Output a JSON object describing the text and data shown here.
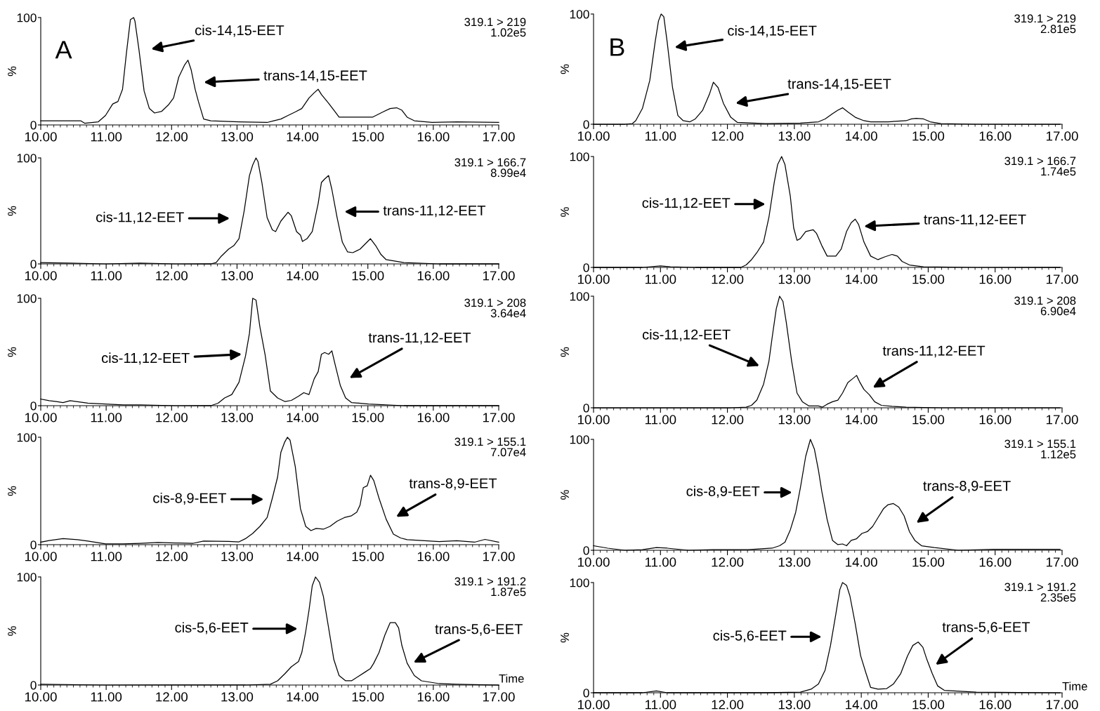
{
  "chart_data": [
    {
      "type": "line",
      "color": "#000000",
      "xlim": [
        10,
        17
      ],
      "xticks": [
        {
          "value": 10,
          "label": "10.00"
        },
        {
          "value": 11,
          "label": "11.00"
        },
        {
          "value": 12,
          "label": "12.00"
        },
        {
          "value": 13,
          "label": "13.00"
        },
        {
          "value": 14,
          "label": "14.00"
        },
        {
          "value": 15,
          "label": "15.00"
        },
        {
          "value": 16,
          "label": "16.00"
        },
        {
          "value": 17,
          "label": "17.00"
        }
      ],
      "ylim": [
        0,
        100
      ],
      "yticks": [
        0,
        100
      ],
      "ylabel": "%",
      "x": [
        10.0,
        10.61,
        10.67,
        10.88,
        10.99,
        11.1,
        11.18,
        11.25,
        11.31,
        11.37,
        11.42,
        11.44,
        11.5,
        11.58,
        11.66,
        11.74,
        11.85,
        11.95,
        12.03,
        12.11,
        12.2,
        12.25,
        12.3,
        12.36,
        12.41,
        12.49,
        12.6,
        13.03,
        13.46,
        13.56,
        13.67,
        13.78,
        13.89,
        13.99,
        14.1,
        14.18,
        14.24,
        14.29,
        14.4,
        14.5,
        14.56,
        14.75,
        15.07,
        15.23,
        15.34,
        15.44,
        15.52,
        15.6,
        15.71,
        15.98,
        16.36,
        17.0
      ],
      "values": [
        3.9,
        3.9,
        1.6,
        2.9,
        8.8,
        19.5,
        21.8,
        33.2,
        67.1,
        98.0,
        100,
        96.7,
        70.7,
        31.6,
        15.3,
        11.1,
        12.7,
        18.6,
        25.1,
        44.6,
        56.0,
        60.3,
        51.1,
        33.2,
        21.8,
        5.5,
        3.9,
        2.9,
        2.3,
        3.9,
        5.5,
        8.8,
        12.1,
        15.3,
        25.1,
        30.0,
        33.2,
        28.3,
        20.2,
        12.1,
        7.2,
        7.2,
        7.2,
        12.1,
        15.3,
        16.0,
        13.7,
        7.2,
        3.9,
        2.3,
        2.9,
        2.3
      ],
      "annotations": [
        "319.1 > 219\n1.02e5",
        "A",
        "cis-14,15-EET",
        "trans-14,15-EET"
      ]
    },
    {
      "type": "line",
      "color": "#000000",
      "xlim": [
        10,
        17
      ],
      "xticks": [
        {
          "value": 10,
          "label": "10.00"
        },
        {
          "value": 11,
          "label": "11.00"
        },
        {
          "value": 12,
          "label": "12.00"
        },
        {
          "value": 13,
          "label": "13.00"
        },
        {
          "value": 14,
          "label": "14.00"
        },
        {
          "value": 15,
          "label": "15.00"
        },
        {
          "value": 16,
          "label": "16.00"
        },
        {
          "value": 17,
          "label": "17.00"
        }
      ],
      "ylim": [
        0,
        100
      ],
      "yticks": [
        0,
        100
      ],
      "ylabel": "%",
      "x": [
        10.0,
        10.47,
        10.58,
        10.63,
        10.73,
        10.84,
        10.92,
        10.97,
        11.01,
        11.05,
        11.1,
        11.18,
        11.26,
        11.34,
        11.44,
        11.52,
        11.63,
        11.73,
        11.79,
        11.86,
        11.94,
        12.05,
        12.15,
        12.57,
        13.09,
        13.36,
        13.46,
        13.57,
        13.65,
        13.72,
        13.8,
        13.91,
        14.04,
        14.14,
        14.4,
        14.67,
        14.75,
        14.82,
        14.93,
        15.03,
        15.19,
        15.72,
        16.97
      ],
      "values": [
        0,
        0,
        0.6,
        3.2,
        14.3,
        39.7,
        74.6,
        93.7,
        100,
        97.5,
        74.6,
        33.3,
        7.9,
        3.2,
        2.2,
        4.8,
        12.7,
        27.0,
        38.1,
        33.3,
        19.0,
        6.3,
        1.6,
        0.6,
        1.0,
        2.2,
        4.8,
        9.5,
        12.7,
        14.9,
        11.1,
        6.3,
        3.2,
        2.2,
        2.2,
        3.2,
        4.8,
        5.4,
        4.8,
        2.2,
        0.6,
        0,
        0
      ],
      "annotations": [
        "319.1 > 219\n2.81e5",
        "B",
        "cis-14,15-EET",
        "trans-14,15-EET"
      ]
    },
    {
      "type": "line",
      "color": "#000000",
      "xlim": [
        10,
        17
      ],
      "xticks": [
        {
          "value": 10,
          "label": "10.00"
        },
        {
          "value": 11,
          "label": "11.00"
        },
        {
          "value": 12,
          "label": "12.00"
        },
        {
          "value": 13,
          "label": "13.00"
        },
        {
          "value": 14,
          "label": "14.00"
        },
        {
          "value": 15,
          "label": "15.00"
        },
        {
          "value": 16,
          "label": "16.00"
        },
        {
          "value": 17,
          "label": "17.00"
        }
      ],
      "ylim": [
        0,
        100
      ],
      "yticks": [
        0,
        100
      ],
      "ylabel": "%",
      "x": [
        10.0,
        10.45,
        10.99,
        11.52,
        12.06,
        12.6,
        12.68,
        12.76,
        12.87,
        12.95,
        13.03,
        13.11,
        13.19,
        13.24,
        13.29,
        13.32,
        13.38,
        13.46,
        13.54,
        13.59,
        13.67,
        13.78,
        13.83,
        13.91,
        13.97,
        14.0,
        14.07,
        14.15,
        14.24,
        14.29,
        14.34,
        14.4,
        14.45,
        14.53,
        14.61,
        14.69,
        14.77,
        14.88,
        14.96,
        15.04,
        15.12,
        15.2,
        15.28,
        15.55,
        16.09,
        17.0
      ],
      "values": [
        1.3,
        0.7,
        0,
        0.7,
        0,
        0,
        1.3,
        7.3,
        13.9,
        17.2,
        23.8,
        50.3,
        83.4,
        93.4,
        100,
        96.7,
        76.8,
        43.7,
        32.1,
        30.5,
        40.4,
        48.7,
        45.4,
        30.5,
        27.2,
        21.2,
        23.8,
        30.5,
        56.9,
        76.8,
        80.1,
        83.4,
        70.2,
        43.7,
        20.5,
        11.3,
        10.6,
        13.9,
        18.9,
        23.8,
        17.2,
        8.9,
        4.0,
        1.3,
        0,
        0
      ],
      "annotations": [
        "319.1 > 166.7\n8.99e4",
        "cis-11,12-EET",
        "trans-11,12-EET"
      ]
    },
    {
      "type": "line",
      "color": "#000000",
      "xlim": [
        10,
        17
      ],
      "xticks": [
        {
          "value": 10,
          "label": "10.00"
        },
        {
          "value": 11,
          "label": "11.00"
        },
        {
          "value": 12,
          "label": "12.00"
        },
        {
          "value": 13,
          "label": "13.00"
        },
        {
          "value": 14,
          "label": "14.00"
        },
        {
          "value": 15,
          "label": "15.00"
        },
        {
          "value": 16,
          "label": "16.00"
        },
        {
          "value": 17,
          "label": "17.00"
        }
      ],
      "ylim": [
        0,
        100
      ],
      "yticks": [
        0,
        100
      ],
      "ylabel": "%",
      "x": [
        10.0,
        10.73,
        11.0,
        11.15,
        11.52,
        12.2,
        12.28,
        12.36,
        12.44,
        12.54,
        12.62,
        12.7,
        12.75,
        12.81,
        12.86,
        12.94,
        12.99,
        13.04,
        13.09,
        13.17,
        13.28,
        13.33,
        13.41,
        13.49,
        13.62,
        13.7,
        13.78,
        13.85,
        13.91,
        13.96,
        14.04,
        14.14,
        14.25,
        14.35,
        14.46,
        14.54,
        14.61,
        14.72,
        14.93,
        15.72,
        16.97
      ],
      "values": [
        0,
        0,
        1.3,
        0.6,
        0,
        0,
        2.2,
        7.0,
        13.3,
        22.9,
        45.1,
        76.8,
        92.7,
        100,
        92.7,
        64.1,
        35.6,
        24.4,
        26.0,
        32.4,
        34.0,
        30.8,
        19.7,
        10.2,
        10.2,
        16.5,
        32.4,
        40.3,
        43.5,
        38.7,
        22.9,
        10.2,
        7.0,
        9.5,
        11.7,
        10.2,
        5.4,
        2.2,
        0.6,
        0,
        0
      ],
      "annotations": [
        "319.1 > 166.7\n1.74e5",
        "cis-11,12-EET",
        "trans-11,12-EET"
      ]
    },
    {
      "type": "line",
      "color": "#000000",
      "xlim": [
        10,
        17
      ],
      "xticks": [
        {
          "value": 10,
          "label": "10.00"
        },
        {
          "value": 11,
          "label": "11.00"
        },
        {
          "value": 12,
          "label": "12.00"
        },
        {
          "value": 13,
          "label": "13.00"
        },
        {
          "value": 14,
          "label": "14.00"
        },
        {
          "value": 15,
          "label": "15.00"
        },
        {
          "value": 16,
          "label": "16.00"
        },
        {
          "value": 17,
          "label": "17.00"
        }
      ],
      "ylim": [
        0,
        100
      ],
      "yticks": [
        0,
        100
      ],
      "ylabel": "%",
      "x": [
        10.0,
        10.13,
        10.24,
        10.34,
        10.45,
        10.72,
        10.99,
        11.26,
        11.52,
        12.06,
        12.6,
        12.71,
        12.81,
        12.92,
        13.03,
        13.13,
        13.19,
        13.24,
        13.29,
        13.35,
        13.43,
        13.51,
        13.62,
        13.73,
        13.83,
        13.94,
        14.02,
        14.1,
        14.18,
        14.24,
        14.29,
        14.34,
        14.4,
        14.45,
        14.5,
        14.58,
        14.66,
        14.75,
        15.01,
        15.55,
        17.0
      ],
      "values": [
        6.2,
        4.6,
        3.9,
        2.9,
        4.6,
        2.3,
        1.6,
        0.7,
        0.7,
        0,
        0,
        2.3,
        7.2,
        10.4,
        21.8,
        46.3,
        67.4,
        100,
        98.4,
        73.3,
        47.2,
        13.7,
        7.2,
        3.9,
        4.9,
        8.8,
        12.1,
        10.4,
        25.1,
        31.6,
        47.9,
        49.5,
        47.9,
        51.1,
        38.1,
        18.6,
        7.2,
        2.9,
        1.6,
        0,
        0
      ],
      "annotations": [
        "319.1 > 208\n3.64e4",
        "cis-11,12-EET",
        "trans-11,12-EET"
      ]
    },
    {
      "type": "line",
      "color": "#000000",
      "xlim": [
        10,
        17
      ],
      "xticks": [
        {
          "value": 10,
          "label": "10.00"
        },
        {
          "value": 11,
          "label": "11.00"
        },
        {
          "value": 12,
          "label": "12.00"
        },
        {
          "value": 13,
          "label": "13.00"
        },
        {
          "value": 14,
          "label": "14.00"
        },
        {
          "value": 15,
          "label": "15.00"
        },
        {
          "value": 16,
          "label": "16.00"
        },
        {
          "value": 17,
          "label": "17.00"
        }
      ],
      "ylim": [
        0,
        100
      ],
      "yticks": [
        0,
        100
      ],
      "ylabel": "%",
      "x": [
        10.0,
        11.0,
        12.05,
        12.28,
        12.36,
        12.44,
        12.54,
        12.62,
        12.67,
        12.73,
        12.78,
        12.83,
        12.88,
        12.96,
        13.04,
        13.12,
        13.22,
        13.36,
        13.42,
        13.49,
        13.57,
        13.65,
        13.72,
        13.8,
        13.88,
        13.93,
        13.98,
        14.04,
        14.12,
        14.2,
        14.3,
        14.46,
        14.67,
        15.19,
        16.97
      ],
      "values": [
        0,
        0,
        0,
        0.6,
        2.2,
        6.9,
        21.1,
        41.6,
        63.7,
        88.8,
        100,
        95.3,
        76.3,
        41.6,
        13.2,
        5.4,
        1.6,
        1.6,
        0.6,
        3.2,
        5.4,
        6.9,
        13.2,
        22.7,
        26.5,
        29.0,
        22.7,
        16.4,
        11.7,
        5.4,
        2.2,
        1.3,
        0.6,
        0,
        0
      ],
      "annotations": [
        "319.1 > 208\n6.90e4",
        "cis-11,12-EET",
        "trans-11,12-EET"
      ]
    },
    {
      "type": "line",
      "color": "#000000",
      "xlim": [
        10,
        17
      ],
      "xticks": [
        {
          "value": 10,
          "label": "10.00"
        },
        {
          "value": 11,
          "label": "11.00"
        },
        {
          "value": 12,
          "label": "12.00"
        },
        {
          "value": 13,
          "label": "13.00"
        },
        {
          "value": 14,
          "label": "14.00"
        },
        {
          "value": 15,
          "label": "15.00"
        },
        {
          "value": 16,
          "label": "16.00"
        },
        {
          "value": 17,
          "label": "17.00"
        }
      ],
      "ylim": [
        0,
        100
      ],
      "yticks": [
        0,
        100
      ],
      "ylabel": "%",
      "x": [
        10.0,
        10.13,
        10.34,
        10.56,
        10.72,
        10.99,
        11.26,
        11.52,
        11.79,
        12.06,
        12.33,
        12.49,
        12.87,
        13.03,
        13.13,
        13.24,
        13.35,
        13.46,
        13.54,
        13.62,
        13.67,
        13.73,
        13.77,
        13.81,
        13.89,
        13.97,
        14.05,
        14.13,
        14.21,
        14.32,
        14.42,
        14.53,
        14.64,
        14.75,
        14.83,
        14.88,
        14.93,
        14.99,
        15.04,
        15.09,
        15.17,
        15.28,
        15.39,
        15.5,
        15.6,
        15.82,
        16.09,
        16.36,
        16.63,
        16.79,
        17.0
      ],
      "values": [
        2.3,
        3.9,
        5.6,
        4.6,
        3.3,
        0.7,
        0.7,
        1.3,
        2.0,
        1.6,
        1.3,
        3.3,
        3.0,
        2.6,
        5.6,
        10.5,
        17.0,
        25.2,
        43.3,
        62.9,
        85.9,
        95.7,
        100,
        97.4,
        72.8,
        33.4,
        17.0,
        13.1,
        15.1,
        14.4,
        17.0,
        21.9,
        25.2,
        26.9,
        30.2,
        36.7,
        53.1,
        54.8,
        64.6,
        59.7,
        43.3,
        23.6,
        9.8,
        6.2,
        4.6,
        3.9,
        2.9,
        3.6,
        2.3,
        4.9,
        2.3
      ],
      "annotations": [
        "319.1 > 155.1\n7.07e4",
        "cis-8,9-EET",
        "trans-8,9-EET"
      ]
    },
    {
      "type": "line",
      "color": "#000000",
      "xlim": [
        10,
        17
      ],
      "xticks": [
        {
          "value": 10,
          "label": "10.00"
        },
        {
          "value": 11,
          "label": "11.00"
        },
        {
          "value": 12,
          "label": "12.00"
        },
        {
          "value": 13,
          "label": "13.00"
        },
        {
          "value": 14,
          "label": "14.00"
        },
        {
          "value": 15,
          "label": "15.00"
        },
        {
          "value": 16,
          "label": "16.00"
        },
        {
          "value": 17,
          "label": "17.00"
        }
      ],
      "ylim": [
        0,
        100
      ],
      "yticks": [
        0,
        100
      ],
      "ylabel": "%",
      "x": [
        10.0,
        10.21,
        10.47,
        10.73,
        10.94,
        11.1,
        11.42,
        11.78,
        12.31,
        12.67,
        12.78,
        12.86,
        12.94,
        13.02,
        13.09,
        13.17,
        13.24,
        13.3,
        13.36,
        13.41,
        13.49,
        13.57,
        13.65,
        13.72,
        13.78,
        13.85,
        13.93,
        14.01,
        14.09,
        14.17,
        14.25,
        14.33,
        14.4,
        14.48,
        14.56,
        14.64,
        14.72,
        14.8,
        14.9,
        15.09,
        15.45,
        15.98,
        16.97
      ],
      "values": [
        4.1,
        1.9,
        0,
        0.6,
        2.5,
        1.9,
        0,
        0.6,
        0.6,
        1.9,
        4.1,
        7.3,
        18.4,
        34.2,
        56.3,
        84.8,
        100,
        91.1,
        72.2,
        53.2,
        27.8,
        8.9,
        5.1,
        5.7,
        4.1,
        8.9,
        10.4,
        15.2,
        16.8,
        21.5,
        29.4,
        37.3,
        41.1,
        42.1,
        38.9,
        31.0,
        16.8,
        8.9,
        4.1,
        2.5,
        0,
        0.9,
        0.9
      ],
      "annotations": [
        "319.1 > 155.1\n1.12e5",
        "cis-8,9-EET",
        "trans-8,9-EET"
      ]
    },
    {
      "type": "line",
      "color": "#000000",
      "xlim": [
        10,
        17
      ],
      "xticks": [
        {
          "value": 10,
          "label": "10.00"
        },
        {
          "value": 11,
          "label": "11.00"
        },
        {
          "value": 12,
          "label": "12.00"
        },
        {
          "value": 13,
          "label": "13.00"
        },
        {
          "value": 14,
          "label": "14.00"
        },
        {
          "value": 15,
          "label": "15.00"
        },
        {
          "value": 16,
          "label": "16.00"
        },
        {
          "value": 17,
          "label": "17.00"
        }
      ],
      "ylim": [
        0,
        100
      ],
      "yticks": [
        0,
        100
      ],
      "ylabel": "%",
      "xlabel": "Time",
      "x": [
        10.0,
        10.99,
        12.06,
        13.13,
        13.51,
        13.62,
        13.73,
        13.83,
        13.94,
        13.99,
        14.05,
        14.1,
        14.15,
        14.2,
        14.26,
        14.32,
        14.4,
        14.48,
        14.56,
        14.66,
        14.75,
        14.85,
        14.96,
        15.04,
        15.09,
        15.17,
        15.26,
        15.34,
        15.42,
        15.47,
        15.52,
        15.6,
        15.71,
        15.82,
        16.09,
        16.36,
        17.0
      ],
      "values": [
        0.7,
        0,
        0,
        0,
        0.7,
        3.9,
        10.4,
        16.9,
        21.8,
        30.0,
        49.5,
        69.1,
        91.9,
        100,
        95.1,
        82.1,
        52.8,
        23.5,
        8.8,
        3.9,
        3.9,
        7.8,
        12.1,
        15.3,
        20.2,
        30.0,
        46.3,
        57.7,
        57.7,
        52.8,
        36.5,
        20.2,
        8.8,
        3.9,
        1.3,
        0.7,
        0
      ],
      "annotations": [
        "319.1 > 191.2\n1.87e5",
        "cis-5,6-EET",
        "trans-5,6-EET"
      ]
    },
    {
      "type": "line",
      "color": "#000000",
      "xlim": [
        10,
        17
      ],
      "xticks": [
        {
          "value": 10,
          "label": "10.00"
        },
        {
          "value": 11,
          "label": "11.00"
        },
        {
          "value": 12,
          "label": "12.00"
        },
        {
          "value": 13,
          "label": "13.00"
        },
        {
          "value": 14,
          "label": "14.00"
        },
        {
          "value": 15,
          "label": "15.00"
        },
        {
          "value": 16,
          "label": "16.00"
        },
        {
          "value": 17,
          "label": "17.00"
        }
      ],
      "ylim": [
        0,
        100
      ],
      "yticks": [
        0,
        100
      ],
      "ylabel": "%",
      "xlabel": "Time",
      "x": [
        10.0,
        10.73,
        10.94,
        11.1,
        12.57,
        13.09,
        13.25,
        13.36,
        13.46,
        13.54,
        13.62,
        13.68,
        13.72,
        13.78,
        13.83,
        13.91,
        13.99,
        14.07,
        14.14,
        14.25,
        14.38,
        14.48,
        14.59,
        14.69,
        14.77,
        14.85,
        14.92,
        14.98,
        15.06,
        15.14,
        15.24,
        15.72,
        16.97
      ],
      "values": [
        0,
        0,
        1.6,
        0,
        0,
        0.6,
        3.2,
        7.9,
        20.6,
        42.9,
        71.4,
        93.7,
        100,
        97.5,
        87.9,
        62.5,
        33.7,
        17.8,
        4.8,
        3.2,
        3.8,
        7.9,
        17.5,
        33.3,
        42.9,
        46.0,
        41.3,
        30.2,
        17.5,
        6.3,
        2.2,
        0.6,
        0
      ],
      "annotations": [
        "319.1 > 191.2\n2.35e5",
        "cis-5,6-EET",
        "trans-5,6-EET"
      ]
    }
  ]
}
